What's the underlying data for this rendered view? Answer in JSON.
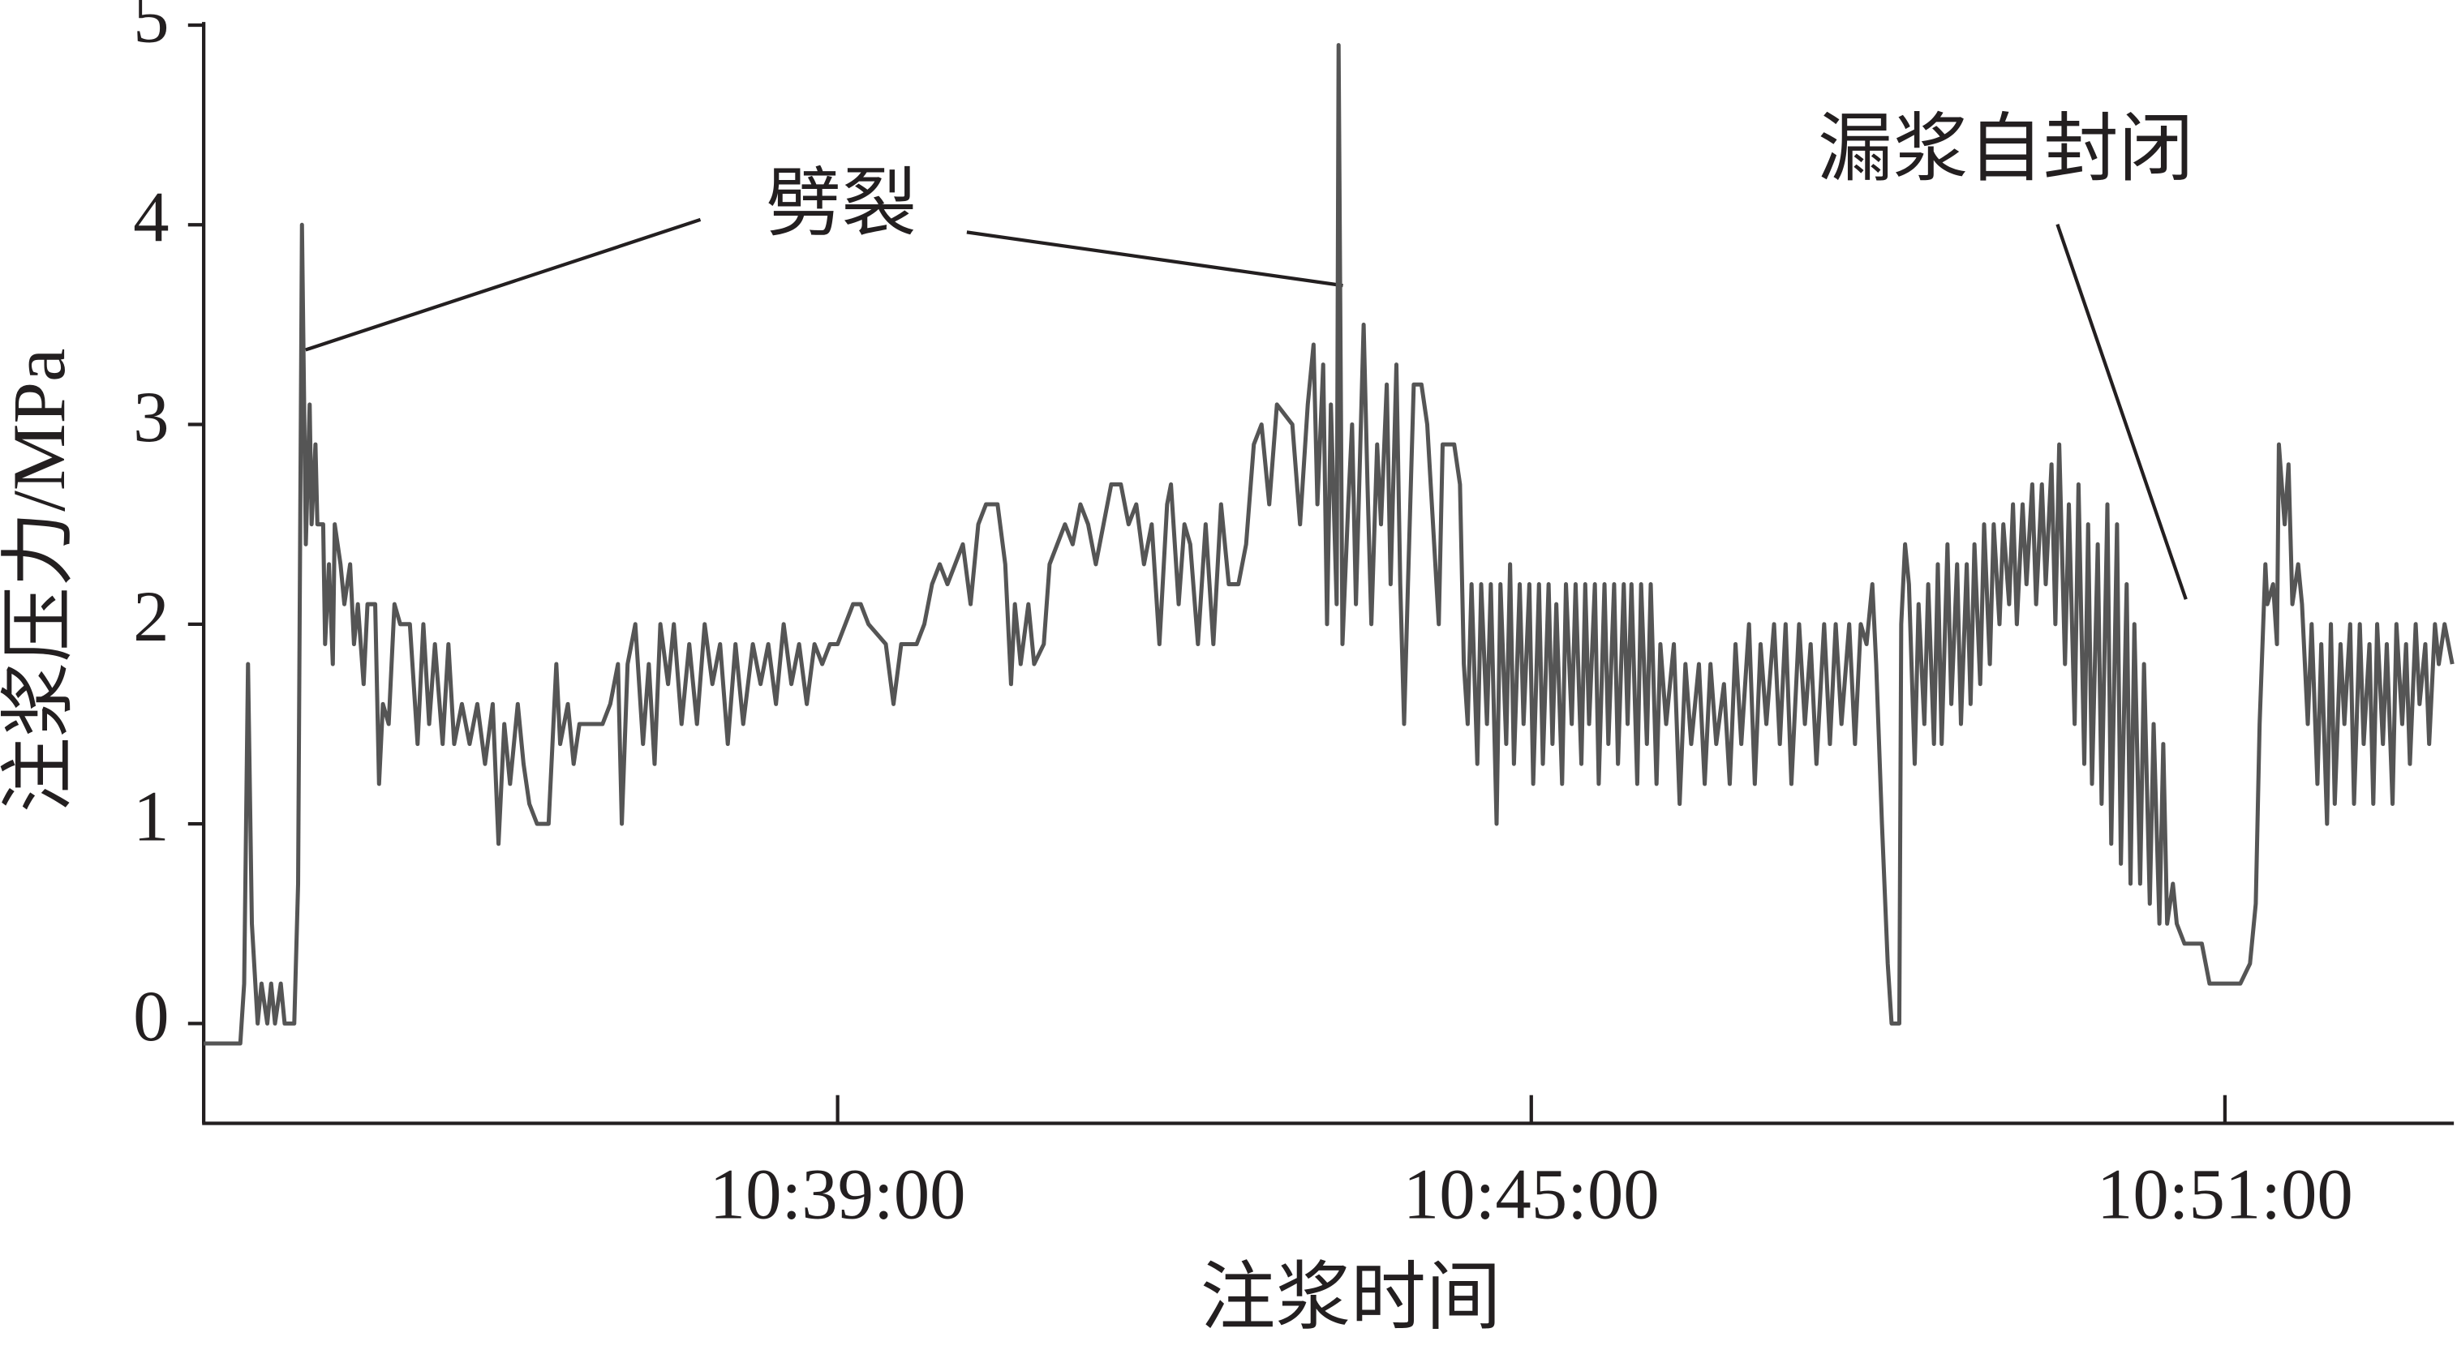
{
  "chart_data": {
    "type": "line",
    "y_label": "注浆压力/MPa",
    "x_label": "注浆时间",
    "annotations": [
      "劈裂",
      "漏浆自封闭"
    ],
    "color": "#555555",
    "xlim": [
      38011,
      39178
    ],
    "ylim": [
      -0.5,
      5
    ],
    "xticks": [
      {
        "value": 38340,
        "label": "10:39:00"
      },
      {
        "value": 38700,
        "label": "10:45:00"
      },
      {
        "value": 39060,
        "label": "10:51:00"
      }
    ],
    "yticks": [
      0,
      1,
      2,
      3,
      4,
      5
    ],
    "x": [
      38011,
      38030,
      38032,
      38034,
      38036,
      38039,
      38041,
      38044,
      38046,
      38048,
      38051,
      38053,
      38058,
      38060,
      38062,
      38064,
      38066,
      38067,
      38069,
      38070,
      38073,
      38074,
      38076,
      38078,
      38079,
      38082,
      38084,
      38087,
      38089,
      38091,
      38094,
      38096,
      38100,
      38102,
      38104,
      38107,
      38110,
      38113,
      38118,
      38122,
      38125,
      38128,
      38131,
      38135,
      38138,
      38141,
      38145,
      38149,
      38153,
      38157,
      38161,
      38164,
      38167,
      38170,
      38174,
      38177,
      38180,
      38184,
      38190,
      38194,
      38196,
      38200,
      38203,
      38206,
      38218,
      38222,
      38226,
      38228,
      38231,
      38235,
      38239,
      38242,
      38245,
      38248,
      38252,
      38255,
      38259,
      38263,
      38267,
      38271,
      38275,
      38279,
      38283,
      38287,
      38291,
      38296,
      38300,
      38304,
      38308,
      38312,
      38316,
      38320,
      38324,
      38328,
      38332,
      38336,
      38340,
      38344,
      38348,
      38352,
      38356,
      38365,
      38369,
      38373,
      38377,
      38381,
      38385,
      38389,
      38393,
      38397,
      38401,
      38405,
      38409,
      38413,
      38417,
      38423,
      38427,
      38430,
      38432,
      38435,
      38439,
      38442,
      38447,
      38450,
      38454,
      38458,
      38462,
      38466,
      38470,
      38474,
      38478,
      38482,
      38487,
      38491,
      38495,
      38499,
      38503,
      38507,
      38511,
      38513,
      38517,
      38520,
      38523,
      38527,
      38531,
      38535,
      38539,
      38543,
      38548,
      38552,
      38556,
      38560,
      38564,
      38568,
      38576,
      38580,
      38584,
      38587,
      38589,
      38592,
      38594,
      38596,
      38599,
      38600,
      38602,
      38605,
      38607,
      38609,
      38613,
      38615,
      38617,
      38620,
      38622,
      38625,
      38627,
      38630,
      38632,
      38634,
      38636,
      38639,
      38643,
      38646,
      38649,
      38652,
      38654,
      38660,
      38663,
      38665,
      38667,
      38669,
      38672,
      38674,
      38677,
      38679,
      38682,
      38684,
      38687,
      38689,
      38691,
      38694,
      38696,
      38699,
      38701,
      38704,
      38706,
      38709,
      38711,
      38713,
      38716,
      38718,
      38721,
      38723,
      38726,
      38728,
      38730,
      38733,
      38735,
      38738,
      38740,
      38743,
      38745,
      38748,
      38750,
      38752,
      38755,
      38757,
      38760,
      38762,
      38765,
      38767,
      38770,
      38774,
      38777,
      38780,
      38783,
      38787,
      38790,
      38793,
      38796,
      38800,
      38803,
      38806,
      38809,
      38813,
      38816,
      38819,
      38822,
      38826,
      38829,
      38832,
      38835,
      38839,
      38842,
      38845,
      38848,
      38852,
      38855,
      38858,
      38861,
      38865,
      38868,
      38871,
      38874,
      38877,
      38879,
      38882,
      38885,
      38887,
      38891,
      38892,
      38894,
      38896,
      38899,
      38901,
      38904,
      38906,
      38909,
      38911,
      38913,
      38916,
      38918,
      38921,
      38923,
      38926,
      38928,
      38930,
      38933,
      38935,
      38938,
      38940,
      38943,
      38945,
      38948,
      38950,
      38952,
      38955,
      38957,
      38960,
      38962,
      38965,
      38967,
      38970,
      38972,
      38974,
      38977,
      38979,
      38982,
      38984,
      38987,
      38989,
      38991,
      38994,
      38996,
      38999,
      39001,
      39004,
      39006,
      39009,
      39011,
      39013,
      39016,
      39018,
      39021,
      39023,
      39026,
      39028,
      39030,
      39033,
      39035,
      39039,
      39048,
      39052,
      39068,
      39073,
      39076,
      39078,
      39081,
      39082,
      39085,
      39087,
      39088,
      39091,
      39093,
      39095,
      39098,
      39100,
      39103,
      39105,
      39108,
      39110,
      39113,
      39115,
      39117,
      39120,
      39122,
      39125,
      39127,
      39130,
      39132,
      39135,
      39137,
      39139,
      39142,
      39144,
      39147,
      39149,
      39152,
      39154,
      39156,
      39159,
      39161,
      39164,
      39166,
      39169,
      39171,
      39174,
      39178
    ],
    "values": [
      -0.1,
      -0.1,
      0.2,
      1.8,
      0.5,
      0,
      0.2,
      0,
      0.2,
      0,
      0.2,
      0,
      0,
      0.7,
      4.0,
      2.4,
      3.1,
      2.5,
      2.9,
      2.5,
      2.5,
      1.9,
      2.3,
      1.8,
      2.5,
      2.3,
      2.1,
      2.3,
      1.9,
      2.1,
      1.7,
      2.1,
      2.1,
      1.2,
      1.6,
      1.5,
      2.1,
      2.0,
      2.0,
      1.4,
      2.0,
      1.5,
      1.9,
      1.4,
      1.9,
      1.4,
      1.6,
      1.4,
      1.6,
      1.3,
      1.6,
      0.9,
      1.5,
      1.2,
      1.6,
      1.3,
      1.1,
      1.0,
      1.0,
      1.8,
      1.4,
      1.6,
      1.3,
      1.5,
      1.5,
      1.6,
      1.8,
      1.0,
      1.8,
      2.0,
      1.4,
      1.8,
      1.3,
      2.0,
      1.7,
      2.0,
      1.5,
      1.9,
      1.5,
      2.0,
      1.7,
      1.9,
      1.4,
      1.9,
      1.5,
      1.9,
      1.7,
      1.9,
      1.6,
      2.0,
      1.7,
      1.9,
      1.6,
      1.9,
      1.8,
      1.9,
      1.9,
      2.0,
      2.1,
      2.1,
      2.0,
      1.9,
      1.6,
      1.9,
      1.9,
      1.9,
      2.0,
      2.2,
      2.3,
      2.2,
      2.3,
      2.4,
      2.1,
      2.5,
      2.6,
      2.6,
      2.3,
      1.7,
      2.1,
      1.8,
      2.1,
      1.8,
      1.9,
      2.3,
      2.4,
      2.5,
      2.4,
      2.6,
      2.5,
      2.3,
      2.5,
      2.7,
      2.7,
      2.5,
      2.6,
      2.3,
      2.5,
      1.9,
      2.6,
      2.7,
      2.1,
      2.5,
      2.4,
      1.9,
      2.5,
      1.9,
      2.6,
      2.2,
      2.2,
      2.4,
      2.9,
      3.0,
      2.6,
      3.1,
      3.0,
      2.5,
      3.1,
      3.4,
      2.6,
      3.3,
      2.0,
      3.1,
      2.1,
      4.9,
      1.9,
      2.6,
      3.0,
      2.1,
      3.5,
      2.7,
      2.0,
      2.9,
      2.5,
      3.2,
      2.2,
      3.3,
      2.2,
      1.5,
      2.2,
      3.2,
      3.2,
      3.0,
      2.5,
      2.0,
      2.9,
      2.9,
      2.7,
      1.8,
      1.5,
      2.2,
      1.3,
      2.2,
      1.5,
      2.2,
      1.0,
      2.2,
      1.4,
      2.3,
      1.3,
      2.2,
      1.5,
      2.2,
      1.2,
      2.2,
      1.3,
      2.2,
      1.4,
      2.1,
      1.2,
      2.2,
      1.5,
      2.2,
      1.3,
      2.2,
      1.5,
      2.2,
      1.2,
      2.2,
      1.4,
      2.2,
      1.3,
      2.2,
      1.5,
      2.2,
      1.2,
      2.2,
      1.4,
      2.2,
      1.2,
      1.9,
      1.5,
      1.9,
      1.1,
      1.8,
      1.4,
      1.8,
      1.2,
      1.8,
      1.4,
      1.7,
      1.2,
      1.9,
      1.4,
      2.0,
      1.2,
      1.9,
      1.5,
      2.0,
      1.4,
      2.0,
      1.2,
      2.0,
      1.5,
      1.9,
      1.3,
      2.0,
      1.4,
      2.0,
      1.5,
      2.0,
      1.4,
      2.0,
      1.9,
      2.2,
      1.8,
      1.0,
      0.3,
      0.0,
      0.0,
      2.0,
      2.4,
      2.2,
      1.3,
      2.1,
      1.5,
      2.2,
      1.4,
      2.3,
      1.4,
      2.4,
      1.6,
      2.3,
      1.5,
      2.3,
      1.6,
      2.4,
      1.7,
      2.5,
      1.8,
      2.5,
      2.0,
      2.5,
      2.1,
      2.6,
      2.0,
      2.6,
      2.2,
      2.7,
      2.1,
      2.7,
      2.2,
      2.8,
      2.0,
      2.9,
      1.8,
      2.6,
      1.5,
      2.7,
      1.3,
      2.5,
      1.2,
      2.4,
      1.1,
      2.6,
      0.9,
      2.5,
      0.8,
      2.2,
      0.7,
      2.0,
      0.7,
      1.8,
      0.6,
      1.5,
      0.5,
      1.4,
      0.5,
      0.7,
      0.5,
      0.4,
      0.4,
      0.2,
      0.2,
      0.3,
      0.6,
      1.5,
      2.3,
      2.1,
      2.2,
      1.9,
      2.9,
      2.5,
      2.8,
      2.1,
      2.3,
      2.1,
      1.5,
      2.0,
      1.2,
      1.9,
      1.0,
      2.0,
      1.1,
      1.9,
      1.5,
      2.0,
      1.1,
      2.0,
      1.4,
      1.9,
      1.1,
      2.0,
      1.4,
      1.9,
      1.1,
      2.0,
      1.5,
      1.9,
      1.3,
      2.0,
      1.6,
      1.9,
      1.4,
      2.0,
      1.8,
      2.0,
      1.8
    ]
  }
}
